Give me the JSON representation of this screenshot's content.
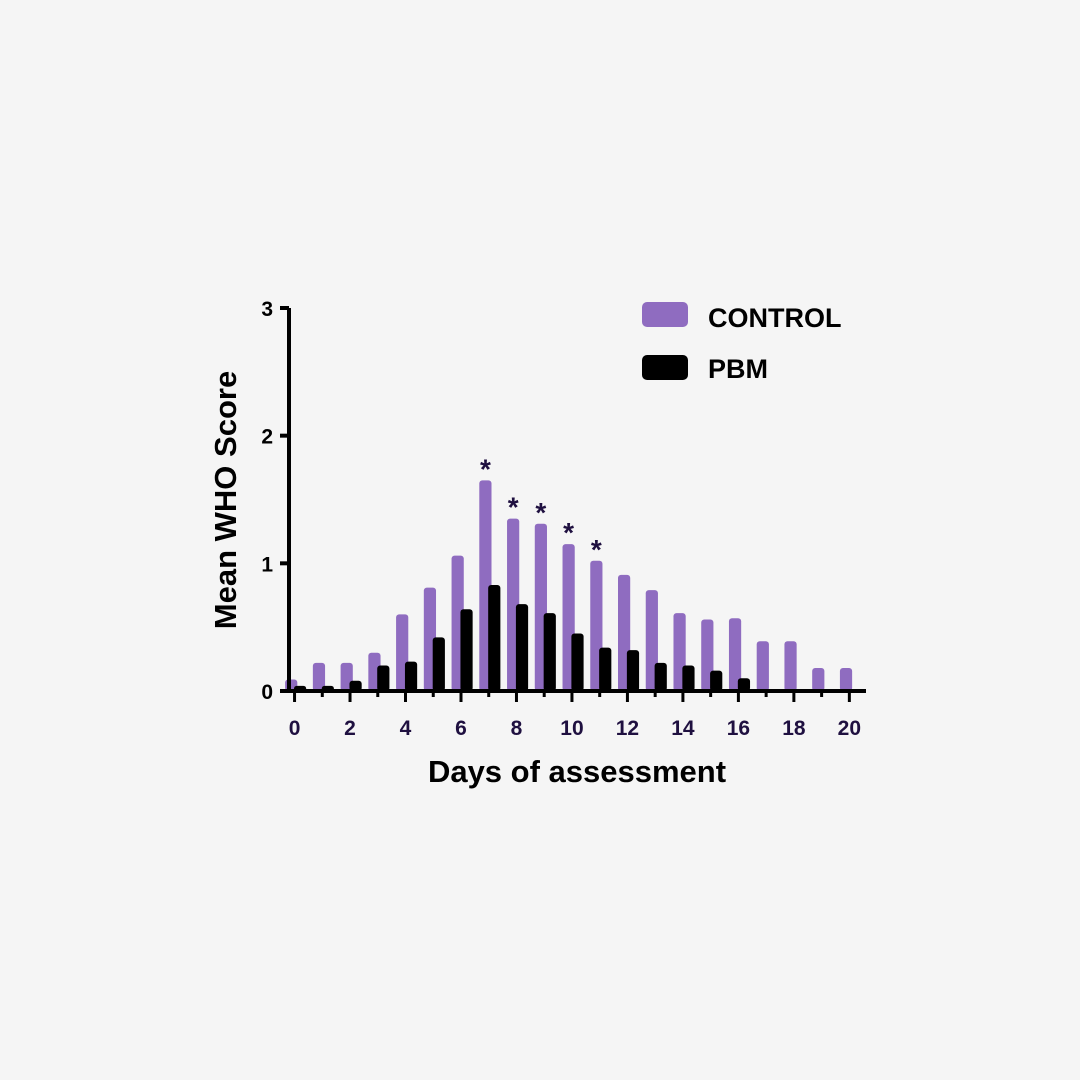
{
  "colors": {
    "background": "#f5f5f5",
    "control": "#8f6cc0",
    "pbm": "#000000",
    "axis": "#000000",
    "x_tick_text": "#1f1040",
    "significance": "#1f1040"
  },
  "chart_data": {
    "type": "bar",
    "xlabel": "Days of assessment",
    "ylabel": "Mean WHO Score",
    "x": [
      0,
      1,
      2,
      3,
      4,
      5,
      6,
      7,
      8,
      9,
      10,
      11,
      12,
      13,
      14,
      15,
      16,
      17,
      18,
      19,
      20
    ],
    "x_tick_labels": [
      "0",
      "2",
      "4",
      "6",
      "8",
      "10",
      "12",
      "14",
      "16",
      "18",
      "20"
    ],
    "y_tick_labels": [
      "0",
      "1",
      "2",
      "3"
    ],
    "ylim": [
      0,
      3
    ],
    "xlim": [
      -0.2,
      20.6
    ],
    "legend_position": "top-right",
    "series": [
      {
        "name": "CONTROL",
        "values": [
          0.09,
          0.22,
          0.22,
          0.3,
          0.6,
          0.81,
          1.06,
          1.65,
          1.35,
          1.31,
          1.15,
          1.02,
          0.91,
          0.79,
          0.61,
          0.56,
          0.57,
          0.39,
          0.39,
          0.18,
          0.18
        ]
      },
      {
        "name": "PBM",
        "values": [
          0.04,
          0.04,
          0.08,
          0.2,
          0.23,
          0.42,
          0.64,
          0.83,
          0.68,
          0.61,
          0.45,
          0.34,
          0.32,
          0.22,
          0.2,
          0.16,
          0.1,
          0,
          0,
          0,
          0
        ]
      }
    ],
    "annotations": [
      {
        "x": 7,
        "text": "*"
      },
      {
        "x": 8,
        "text": "*"
      },
      {
        "x": 9,
        "text": "*"
      },
      {
        "x": 10,
        "text": "*"
      },
      {
        "x": 11,
        "text": "*"
      }
    ]
  }
}
